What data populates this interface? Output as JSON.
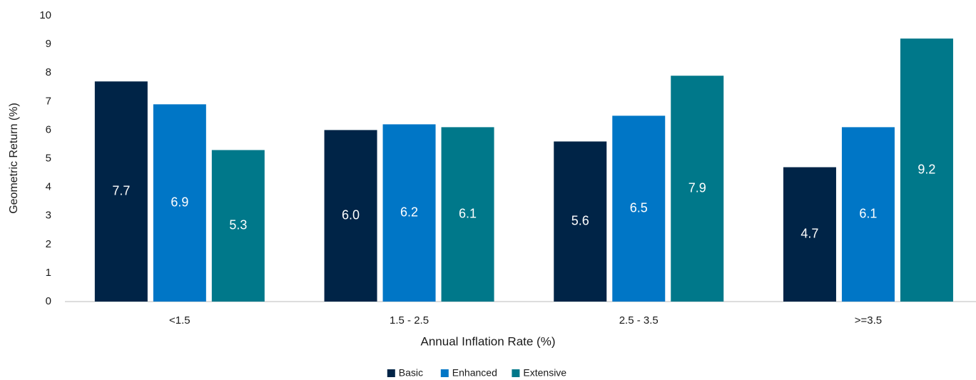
{
  "chart_data": {
    "type": "bar",
    "x_label": "Annual Inflation Rate (%)",
    "y_label": "Geometric Return (%)",
    "categories": [
      "<1.5",
      "1.5 - 2.5",
      "2.5 - 3.5",
      ">=3.5"
    ],
    "series": [
      {
        "name": "Basic",
        "color": "#002447",
        "values": [
          7.7,
          6.0,
          5.6,
          4.7
        ],
        "value_labels": [
          "7.7",
          "6.0",
          "5.6",
          "4.7"
        ]
      },
      {
        "name": "Enhanced",
        "color": "#0076c6",
        "values": [
          6.9,
          6.2,
          6.5,
          6.1
        ],
        "value_labels": [
          "6.9",
          "6.2",
          "6.5",
          "6.1"
        ]
      },
      {
        "name": "Extensive",
        "color": "#00788a",
        "values": [
          5.3,
          6.1,
          7.9,
          9.2
        ],
        "value_labels": [
          "5.3",
          "6.1",
          "7.9",
          "9.2"
        ]
      }
    ],
    "ylim": [
      0,
      10
    ],
    "yticks": [
      0,
      1,
      2,
      3,
      4,
      5,
      6,
      7,
      8,
      9,
      10
    ],
    "grid": false,
    "legend": "bottom"
  }
}
